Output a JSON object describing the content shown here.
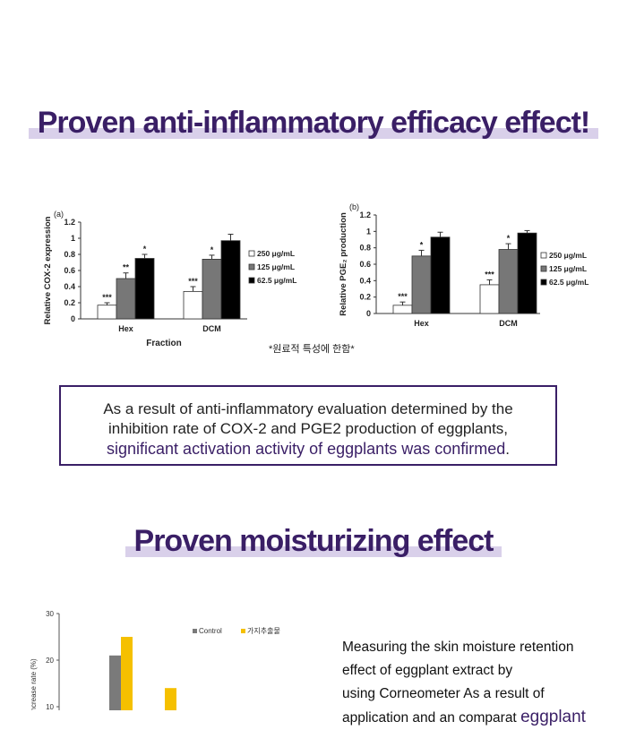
{
  "section1": {
    "heading": "Proven anti-inflammatory efficacy effect!"
  },
  "note": "*원료적 특성에 한함*",
  "result_box": {
    "line1": "As a result of anti-inflammatory evaluation determined by the",
    "line2": "inhibition rate of COX-2 and PGE2 production of eggplants,",
    "line3": "significant activation activity of eggplants was confirmed",
    "line3_end": "."
  },
  "section2": {
    "heading": "Proven moisturizing effect"
  },
  "description": {
    "line1": "Measuring the skin moisture retention",
    "line2": "effect of eggplant extract by",
    "line3": "using Corneometer As a result of",
    "line4_a": "application and an comparat",
    "line4_b": "eggplant"
  },
  "colors": {
    "accent": "#3a1f66",
    "highlight": "#d9d0ea",
    "bar_yellow": "#f5c000",
    "bar_gray": "#7a7a7a"
  },
  "chart_data": [
    {
      "type": "bar",
      "panel_label": "(a)",
      "ylabel": "Relative COX-2 expression",
      "xlabel": "Fraction",
      "ylim": [
        0,
        1.2
      ],
      "yticks": [
        "0",
        "0.2",
        "0.4",
        "0.6",
        "0.8",
        "1",
        "1.2"
      ],
      "categories": [
        "Hex",
        "DCM"
      ],
      "series": [
        {
          "name": "250 μg/mL",
          "values": [
            0.17,
            0.34
          ],
          "errors": [
            0.03,
            0.06
          ],
          "sig": [
            "***",
            "***"
          ]
        },
        {
          "name": "125 μg/mL",
          "values": [
            0.5,
            0.74
          ],
          "errors": [
            0.07,
            0.05
          ],
          "sig": [
            "**",
            "*"
          ]
        },
        {
          "name": "62.5 μg/mL",
          "values": [
            0.75,
            0.97
          ],
          "errors": [
            0.05,
            0.08
          ],
          "sig": [
            "*",
            ""
          ]
        }
      ],
      "legend": "right"
    },
    {
      "type": "bar",
      "panel_label": "(b)",
      "ylabel": "Relative PGE₂ production",
      "xlabel": "",
      "ylim": [
        0,
        1.2
      ],
      "yticks": [
        "0",
        "0.2",
        "0.4",
        "0.6",
        "0.8",
        "1",
        "1.2"
      ],
      "categories": [
        "Hex",
        "DCM"
      ],
      "series": [
        {
          "name": "250 μg/mL",
          "values": [
            0.1,
            0.35
          ],
          "errors": [
            0.04,
            0.06
          ],
          "sig": [
            "***",
            "***"
          ]
        },
        {
          "name": "125 μg/mL",
          "values": [
            0.7,
            0.78
          ],
          "errors": [
            0.07,
            0.07
          ],
          "sig": [
            "*",
            "*"
          ]
        },
        {
          "name": "62.5 μg/mL",
          "values": [
            0.93,
            0.98
          ],
          "errors": [
            0.06,
            0.03
          ],
          "sig": [
            "",
            ""
          ]
        }
      ],
      "legend": "right"
    },
    {
      "type": "bar",
      "ylabel": "Increase rate (%)",
      "ylim": [
        0,
        30
      ],
      "yticks": [
        "10",
        "20",
        "30"
      ],
      "categories": [
        "",
        ""
      ],
      "series": [
        {
          "name": "Control",
          "values": [
            21,
            0
          ]
        },
        {
          "name": "가지추출물",
          "values": [
            25,
            14
          ]
        }
      ],
      "legend": "top"
    }
  ]
}
